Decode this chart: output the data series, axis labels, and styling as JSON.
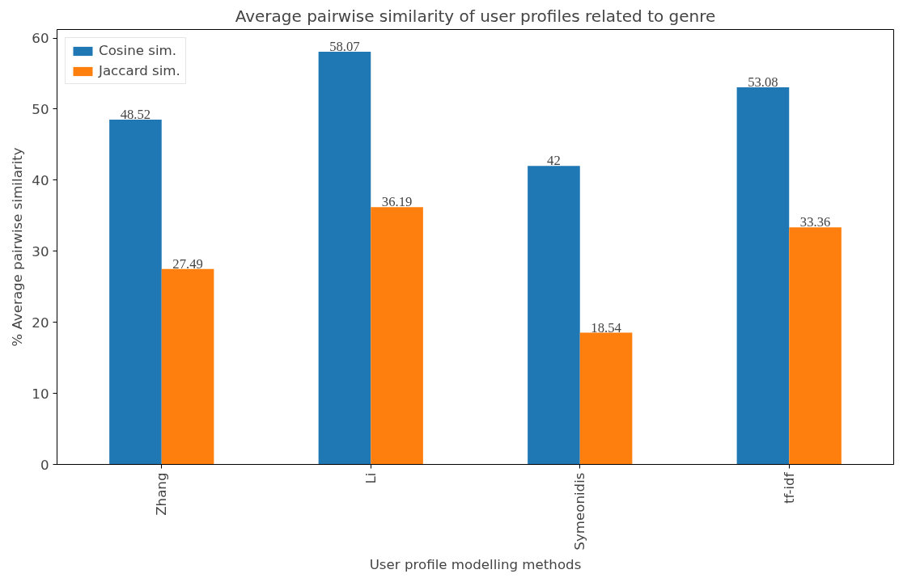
{
  "chart_data": {
    "type": "bar",
    "title": "Average pairwise similarity of user profiles related to genre",
    "xlabel": "User profile modelling methods",
    "ylabel": "% Average pairwise similarity",
    "categories": [
      "Zhang",
      "Li",
      "Symeonidis",
      "tf-idf"
    ],
    "series": [
      {
        "name": "Cosine sim.",
        "color": "#1f77b4",
        "values": [
          48.52,
          58.07,
          42,
          53.08
        ]
      },
      {
        "name": "Jaccard sim.",
        "color": "#ff7f0e",
        "values": [
          27.49,
          36.19,
          18.54,
          33.36
        ]
      }
    ],
    "ylim": [
      0,
      61.2
    ],
    "yticks": [
      0,
      10,
      20,
      30,
      40,
      50,
      60
    ],
    "data_labels": true,
    "legend": "top left",
    "grid": false
  }
}
